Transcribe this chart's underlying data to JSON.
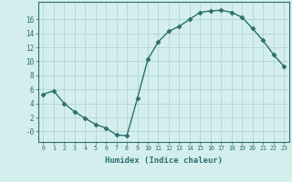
{
  "title": "",
  "xlabel": "Humidex (Indice chaleur)",
  "x_values": [
    0,
    1,
    2,
    3,
    4,
    5,
    6,
    7,
    8,
    9,
    10,
    11,
    12,
    13,
    14,
    15,
    16,
    17,
    18,
    19,
    20,
    21,
    22,
    23
  ],
  "y_values": [
    5.3,
    5.8,
    4.0,
    2.8,
    1.9,
    1.0,
    0.5,
    -0.5,
    -0.6,
    4.7,
    10.3,
    12.8,
    14.3,
    15.0,
    16.0,
    17.0,
    17.2,
    17.3,
    17.0,
    16.3,
    14.7,
    13.0,
    11.0,
    9.3
  ],
  "line_color": "#2d6e6e",
  "marker": "D",
  "marker_size": 2.5,
  "background_color": "#d4eeee",
  "grid_color": "#aed4d4",
  "tick_color": "#2d6e6e",
  "label_color": "#2d6e6e",
  "ylim": [
    -1.5,
    18.5
  ],
  "yticks": [
    0,
    2,
    4,
    6,
    8,
    10,
    12,
    14,
    16
  ],
  "ytick_labels": [
    "-0",
    "2",
    "4",
    "6",
    "8",
    "10",
    "12",
    "14",
    "16"
  ]
}
